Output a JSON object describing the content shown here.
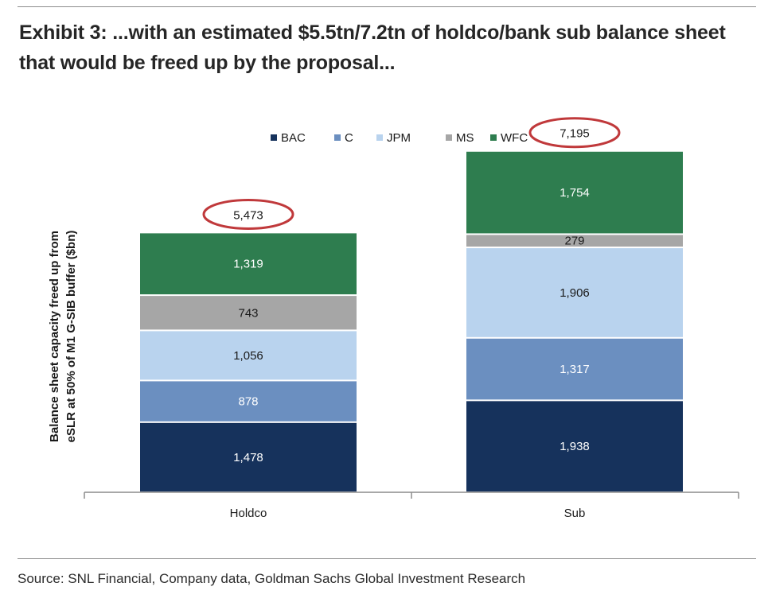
{
  "header": {
    "title": "Exhibit 3: ...with an estimated $5.5tn/7.2tn of holdco/bank sub balance sheet that would be freed up by the proposal..."
  },
  "footer": {
    "source": "Source: SNL Financial, Company data, Goldman Sachs Global Investment Research"
  },
  "chart_data": {
    "type": "bar",
    "stacked": true,
    "categories": [
      "Holdco",
      "Sub"
    ],
    "series": [
      {
        "name": "BAC",
        "values": [
          1478,
          1938
        ],
        "labels": [
          "1,478",
          "1,938"
        ],
        "color": "#16325c"
      },
      {
        "name": "C",
        "values": [
          878,
          1317
        ],
        "labels": [
          "878",
          "1,317"
        ],
        "color": "#6b8fc0"
      },
      {
        "name": "JPM",
        "values": [
          1056,
          1906
        ],
        "labels": [
          "1,056",
          "1,906"
        ],
        "color": "#b9d3ee"
      },
      {
        "name": "MS",
        "values": [
          743,
          279
        ],
        "labels": [
          "743",
          "279"
        ],
        "color": "#a6a6a6"
      },
      {
        "name": "WFC",
        "values": [
          1319,
          1754
        ],
        "labels": [
          "1,319",
          "1,754"
        ],
        "color": "#2e7d4f"
      }
    ],
    "totals": [
      5473,
      7195
    ],
    "total_labels": [
      "5,473",
      "7,195"
    ],
    "total_highlight_color": "#c0393b",
    "ylabel": "Balance sheet capacity freed up from eSLR at 50% of M1 G-SIB buffer ($bn)",
    "ylabel_lines": [
      "Balance sheet capacity freed up from",
      "eSLR at 50% of M1 G-SIB buffer ($bn)"
    ],
    "xlabel": "",
    "ylim": [
      0,
      9000
    ],
    "legend_position": "top-center",
    "grid": false
  }
}
